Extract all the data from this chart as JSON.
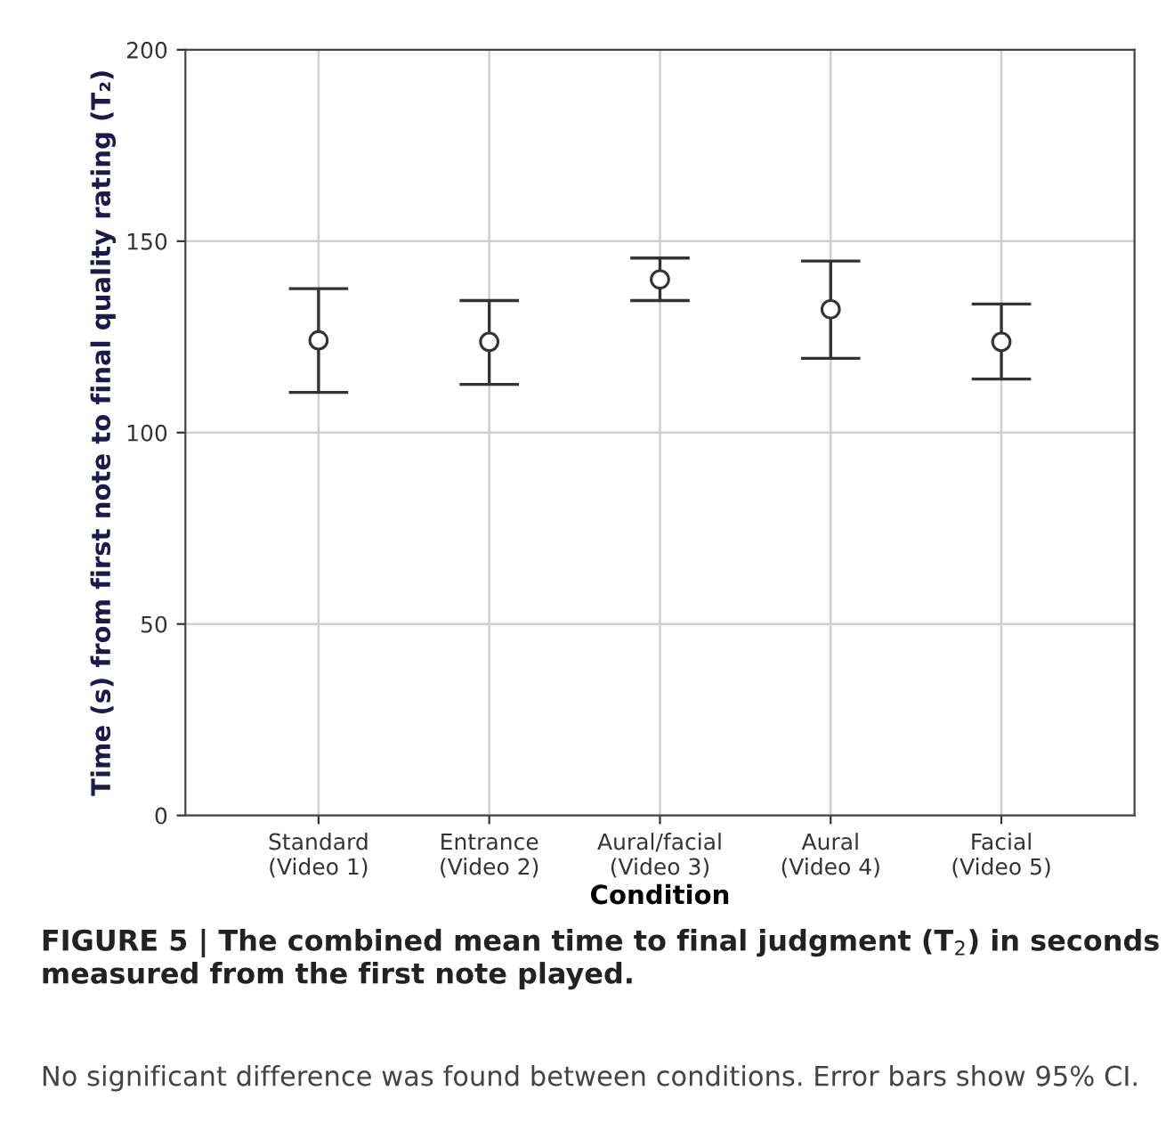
{
  "chart_data": {
    "type": "scatter",
    "xlabel": "Condition",
    "ylabel": "Time (s) from first note to final quality rating (T₂)",
    "categories": [
      "Standard\n(Video 1)",
      "Entrance\n(Video 2)",
      "Aural/facial\n(Video 3)",
      "Aural\n(Video 4)",
      "Facial\n(Video 5)"
    ],
    "values": [
      124.1,
      123.7,
      140.0,
      132.2,
      123.7
    ],
    "errors": [
      [
        110.5,
        137.6
      ],
      [
        112.6,
        134.5
      ],
      [
        134.5,
        145.6
      ],
      [
        119.4,
        144.8
      ],
      [
        114.0,
        133.6
      ]
    ],
    "color": "#333333",
    "marker": "circle",
    "grid": true,
    "ylim": [
      0,
      200
    ],
    "yticks": [
      0,
      50,
      100,
      150,
      200
    ],
    "annotations": [
      "FIGURE 5 | The combined mean time to final judgment (T$_{2}$) in seconds measured from the first note played.",
      "No significant difference was found between conditions. Error bars show 95% CI."
    ]
  }
}
